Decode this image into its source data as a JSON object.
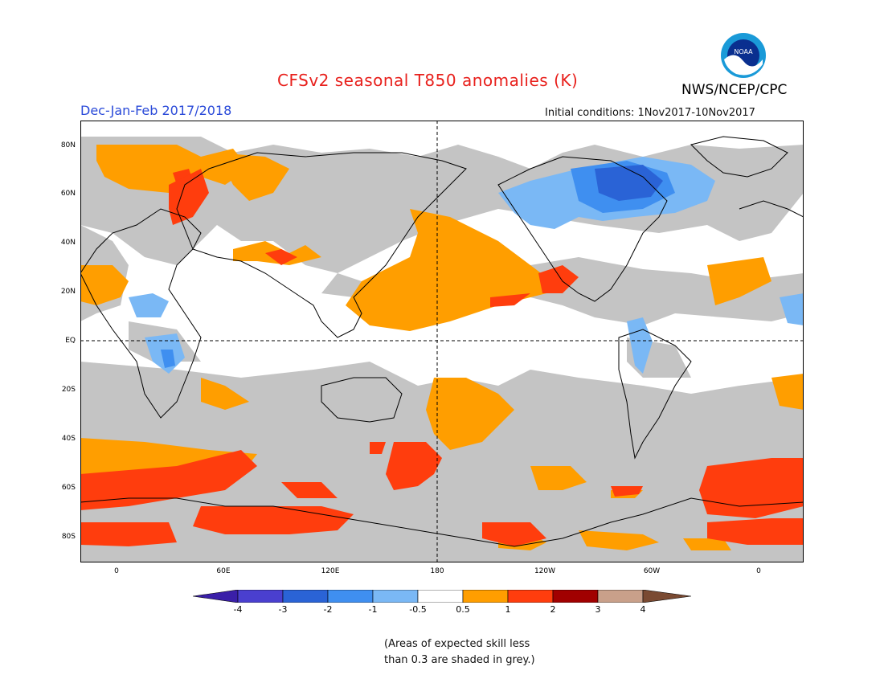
{
  "header": {
    "title": "CFSv2 seasonal T850 anomalies (K)",
    "agency": "NWS/NCEP/CPC",
    "logo_text": "NOAA",
    "period": "Dec-Jan-Feb 2017/2018",
    "initial_conditions": "Initial conditions: 1Nov2017-10Nov2017"
  },
  "map": {
    "lat_labels": [
      "80N",
      "60N",
      "40N",
      "20N",
      "EQ",
      "20S",
      "40S",
      "60S",
      "80S"
    ],
    "lon_labels": [
      "0",
      "60E",
      "120E",
      "180",
      "120W",
      "60W",
      "0"
    ]
  },
  "legend": {
    "labels": [
      "-4",
      "-3",
      "-2",
      "-1",
      "-0.5",
      "0.5",
      "1",
      "2",
      "3",
      "4"
    ],
    "colors": [
      "#3a1fa8",
      "#4a3fcf",
      "#2a63d6",
      "#3f8ff0",
      "#7ab8f5",
      "#ffffff",
      "#ff9e00",
      "#ff3d0d",
      "#a10000",
      "#c9a08a",
      "#7a4a32"
    ]
  },
  "colors": {
    "grey_mask": "#c4c4c4",
    "warm_light": "#ff9e00",
    "warm_strong": "#ff3d0d",
    "cool_light": "#7ab8f5",
    "cool_mid": "#3f8ff0",
    "cool_strong": "#2a63d6"
  },
  "footnote": {
    "line1": "(Areas of expected skill less",
    "line2": "than 0.3 are shaded in grey.)"
  }
}
